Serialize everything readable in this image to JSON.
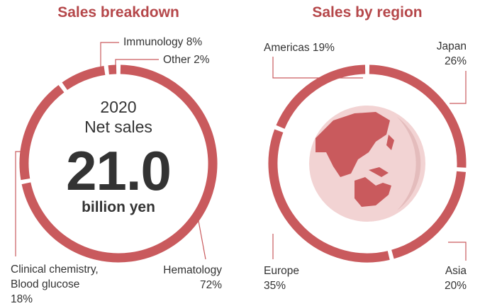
{
  "chart_data": [
    {
      "type": "pie",
      "title": "Sales breakdown",
      "categories": [
        "Hematology",
        "Clinical chemistry, Blood glucose",
        "Immunology",
        "Other"
      ],
      "values": [
        72,
        18,
        8,
        2
      ],
      "value_labels": [
        "72%",
        "18%",
        "8%",
        "2%"
      ],
      "color": "#c95a5d",
      "annotations": [
        "2020",
        "Net sales",
        "21.0",
        "billion yen"
      ]
    },
    {
      "type": "pie",
      "title": "Sales by region",
      "categories": [
        "Japan",
        "Asia",
        "Europe",
        "Americas"
      ],
      "values": [
        26,
        20,
        35,
        19
      ],
      "value_labels": [
        "26%",
        "20%",
        "35%",
        "19%"
      ],
      "color": "#c95a5d"
    }
  ]
}
